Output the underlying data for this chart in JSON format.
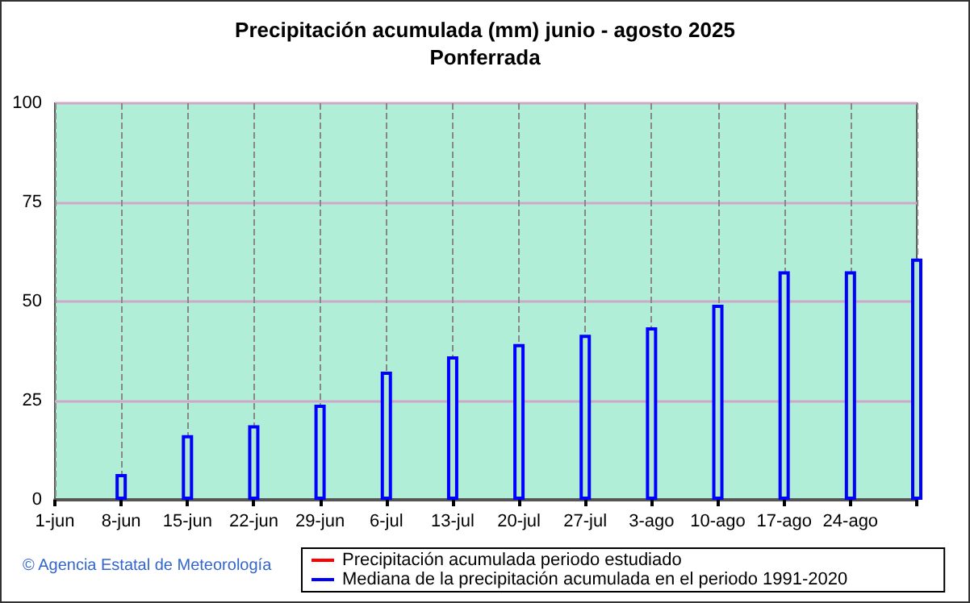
{
  "chart_data": {
    "type": "bar",
    "title": "Precipitación acumulada (mm) junio - agosto 2025",
    "subtitle": "Ponferrada",
    "categories": [
      "1-jun",
      "8-jun",
      "15-jun",
      "22-jun",
      "29-jun",
      "6-jul",
      "13-jul",
      "20-jul",
      "27-jul",
      "3-ago",
      "10-ago",
      "17-ago",
      "24-ago",
      null
    ],
    "series": [
      {
        "name": "Precipitación acumulada periodo estudiado",
        "type": "line",
        "color": "#ff0000",
        "values": [
          null,
          null,
          null,
          null,
          null,
          null,
          null,
          null,
          null,
          null,
          null,
          null,
          null,
          null
        ]
      },
      {
        "name": "Mediana de la precipitación acumulada en el periodo 1991-2020",
        "color": "#0000ff",
        "values": [
          null,
          6.5,
          16.3,
          18.8,
          24.0,
          32.3,
          36.2,
          39.3,
          41.6,
          43.5,
          49.2,
          57.6,
          57.6,
          60.8
        ]
      }
    ],
    "ylim": [
      0,
      100
    ],
    "yticks": [
      0,
      25,
      50,
      75,
      100
    ],
    "grid": true,
    "legend": "bottom",
    "annotations": [
      "© Agencia Estatal de Meteorología"
    ]
  }
}
